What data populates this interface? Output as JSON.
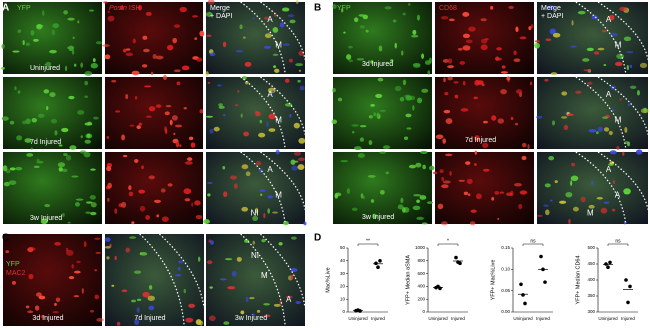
{
  "figure": {
    "A": {
      "letter": "A",
      "cols": [
        "YFP",
        [
          "Postn",
          "ISH"
        ],
        [
          "Merge",
          "+ DAPI"
        ]
      ],
      "rows": [
        {
          "label": "Uninjured",
          "marks": [
            "A",
            "M"
          ]
        },
        {
          "label": "7d Injured",
          "marks": [
            "A",
            "M"
          ]
        },
        {
          "label": "3w Injured",
          "marks": [
            "A",
            "M",
            "NI"
          ]
        }
      ]
    },
    "B": {
      "letter": "B",
      "cols": [
        "YFP",
        "CD68",
        [
          "Merge",
          "+ DAPI"
        ]
      ],
      "rows": [
        {
          "label": "3d Injured",
          "marks": [
            "A",
            "M"
          ]
        },
        {
          "label": "7d Injured",
          "marks": [
            "A",
            "M"
          ]
        },
        {
          "label": "3w Injured",
          "marks": [
            "A",
            "A",
            "M"
          ]
        }
      ]
    },
    "C": {
      "letter": "C",
      "stains": [
        "YFP",
        "MAC2"
      ],
      "images": [
        {
          "label": "3d Injured",
          "marks": []
        },
        {
          "label": "7d Injured",
          "marks": []
        },
        {
          "label": "3w Injured",
          "marks": [
            "NI",
            "M",
            "A"
          ]
        }
      ]
    },
    "D": {
      "letter": "D"
    }
  },
  "chart_data": [
    {
      "type": "dot",
      "ylabel": "Mac%Live",
      "categories": [
        "Uninjured",
        "Injured"
      ],
      "values": [
        [
          1,
          1.5,
          0.8
        ],
        [
          38,
          35,
          40
        ]
      ],
      "ylim": [
        0,
        50
      ],
      "yticks": [
        0,
        10,
        20,
        30,
        40,
        50
      ],
      "significance": "**",
      "color": "#000000"
    },
    {
      "type": "dot",
      "ylabel": "YFP+ Median aSMA",
      "categories": [
        "Uninjured",
        "Injured"
      ],
      "values": [
        [
          380,
          400,
          370
        ],
        [
          850,
          780,
          760
        ]
      ],
      "ylim": [
        0,
        1000
      ],
      "yticks": [
        0,
        200,
        400,
        600,
        800,
        1000
      ],
      "significance": "*",
      "color": "#000000"
    },
    {
      "type": "dot",
      "ylabel": "YFP+ Mac%Live",
      "categories": [
        "Uninjured",
        "Injured"
      ],
      "values": [
        [
          0.065,
          0.04,
          0.02
        ],
        [
          0.13,
          0.1,
          0.07
        ]
      ],
      "ylim": [
        0,
        0.15
      ],
      "yticks": [
        {
          "value": 0,
          "label": "0.00"
        },
        0.05,
        {
          "value": 0.1,
          "label": "0.10"
        },
        {
          "value": 0.15,
          "label": "0.15"
        }
      ],
      "significance": "ns",
      "color": "#000000"
    },
    {
      "type": "dot",
      "ylabel": "YFP+ Median CD64",
      "categories": [
        "Uninjured",
        "Injured"
      ],
      "values": [
        [
          450,
          440,
          455
        ],
        [
          400,
          330,
          380
        ]
      ],
      "ylim": [
        300,
        500
      ],
      "yticks": [
        300,
        350,
        400,
        450,
        500
      ],
      "significance": "ns",
      "color": "#000000"
    }
  ]
}
